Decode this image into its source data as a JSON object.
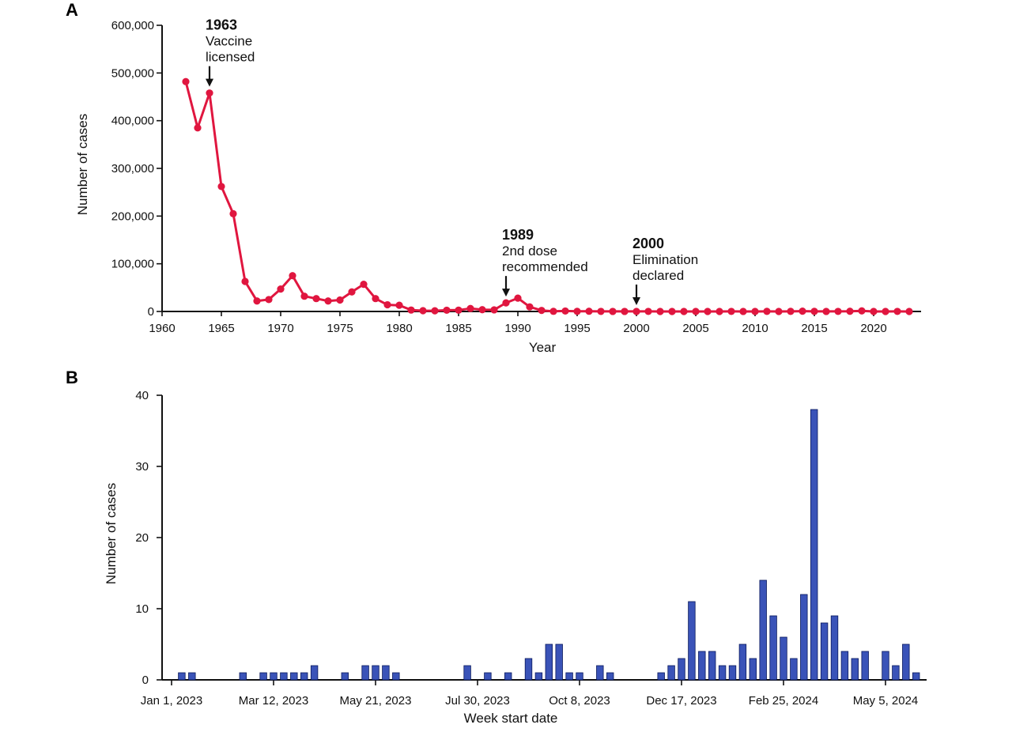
{
  "colors": {
    "line": "#e0163f",
    "bar": "#3a53b8",
    "axis": "#111111"
  },
  "chart_data": [
    {
      "panel_label": "A",
      "type": "line",
      "xlabel": "Year",
      "ylabel": "Number of cases",
      "xlim": [
        1960,
        2024
      ],
      "ylim": [
        0,
        600000
      ],
      "x_ticks": [
        1960,
        1965,
        1970,
        1975,
        1980,
        1985,
        1990,
        1995,
        2000,
        2005,
        2010,
        2015,
        2020
      ],
      "x_tick_labels": [
        "1960",
        "1965",
        "1970",
        "1975",
        "1980",
        "1985",
        "1990",
        "1995",
        "2000",
        "2005",
        "2010",
        "2015",
        "2020"
      ],
      "y_ticks": [
        0,
        100000,
        200000,
        300000,
        400000,
        500000,
        600000
      ],
      "y_tick_labels": [
        "0",
        "100,000",
        "200,000",
        "300,000",
        "400,000",
        "500,000",
        "600,000"
      ],
      "grid": false,
      "series": [
        {
          "x": [
            1962,
            1963,
            1964,
            1965,
            1966,
            1967,
            1968,
            1969,
            1970,
            1971,
            1972,
            1973,
            1974,
            1975,
            1976,
            1977,
            1978,
            1979,
            1980,
            1981,
            1982,
            1983,
            1984,
            1985,
            1986,
            1987,
            1988,
            1989,
            1990,
            1991,
            1992,
            1993,
            1994,
            1995,
            1996,
            1997,
            1998,
            1999,
            2000,
            2001,
            2002,
            2003,
            2004,
            2005,
            2006,
            2007,
            2008,
            2009,
            2010,
            2011,
            2012,
            2013,
            2014,
            2015,
            2016,
            2017,
            2018,
            2019,
            2020,
            2021,
            2022,
            2023
          ],
          "values": [
            482000,
            385000,
            458000,
            262000,
            205000,
            63000,
            22000,
            25000,
            47000,
            75000,
            32000,
            27000,
            22000,
            24000,
            41000,
            57000,
            27000,
            14000,
            13000,
            3000,
            1700,
            1500,
            2600,
            2800,
            6300,
            3700,
            3400,
            18000,
            28000,
            9600,
            2200,
            300,
            960,
            300,
            500,
            138,
            100,
            100,
            86,
            116,
            44,
            56,
            37,
            66,
            55,
            43,
            140,
            71,
            63,
            220,
            55,
            187,
            667,
            188,
            86,
            120,
            375,
            1282,
            13,
            49,
            121,
            59
          ]
        }
      ],
      "annotations": [
        {
          "x": 1964,
          "year": "1963",
          "lines": [
            "Vaccine",
            "licensed"
          ]
        },
        {
          "x": 1989,
          "year": "1989",
          "lines": [
            "2nd dose",
            "recommended"
          ]
        },
        {
          "x": 2000,
          "year": "2000",
          "lines": [
            "Elimination",
            "declared"
          ]
        }
      ]
    },
    {
      "panel_label": "B",
      "type": "bar",
      "xlabel": "Week start date",
      "ylabel": "Number of cases",
      "ylim": [
        0,
        40
      ],
      "y_ticks": [
        0,
        10,
        20,
        30,
        40
      ],
      "y_tick_labels": [
        "0",
        "10",
        "20",
        "30",
        "40"
      ],
      "x_ticks_week_index": [
        0,
        10,
        20,
        30,
        40,
        50,
        60,
        70
      ],
      "x_tick_labels": [
        "Jan 1, 2023",
        "Mar 12, 2023",
        "May 21, 2023",
        "Jul 30, 2023",
        "Oct 8, 2023",
        "Dec 17, 2023",
        "Feb 25, 2024",
        "May 5, 2024"
      ],
      "grid": false,
      "values": [
        0,
        1,
        1,
        0,
        0,
        0,
        0,
        1,
        0,
        1,
        1,
        1,
        1,
        1,
        2,
        0,
        0,
        1,
        0,
        2,
        2,
        2,
        1,
        0,
        0,
        0,
        0,
        0,
        0,
        2,
        0,
        1,
        0,
        1,
        0,
        3,
        1,
        5,
        5,
        1,
        1,
        0,
        2,
        1,
        0,
        0,
        0,
        0,
        1,
        2,
        3,
        11,
        4,
        4,
        2,
        2,
        5,
        3,
        14,
        9,
        6,
        3,
        12,
        38,
        8,
        9,
        4,
        3,
        4,
        0,
        4,
        2,
        5,
        1
      ]
    }
  ]
}
